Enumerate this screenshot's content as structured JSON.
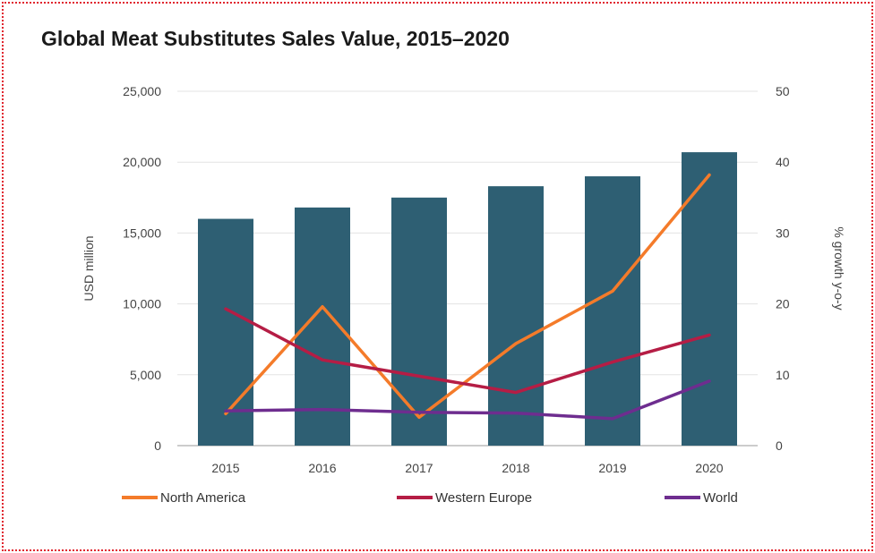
{
  "chart_data": {
    "type": "bar",
    "title": "Global Meat Substitutes Sales Value, 2015–2020",
    "categories": [
      "2015",
      "2016",
      "2017",
      "2018",
      "2019",
      "2020"
    ],
    "ylabel": "USD million",
    "y2label": "% growth y-o-y",
    "ylim": [
      0,
      25000
    ],
    "y2lim": [
      0,
      50
    ],
    "yticks": [
      "0",
      "5,000",
      "10,000",
      "15,000",
      "20,000",
      "25,000"
    ],
    "y2ticks": [
      "0",
      "10",
      "20",
      "30",
      "40",
      "50"
    ],
    "grid": true,
    "legend_position": "bottom",
    "bars": {
      "values": [
        16000,
        16800,
        17500,
        18300,
        19000,
        20700
      ],
      "color": "#2e5f73"
    },
    "series": [
      {
        "name": "North America",
        "axis": "right",
        "color": "#f47b2a",
        "values": [
          4.5,
          19.6,
          4.0,
          14.4,
          21.8,
          38.2
        ]
      },
      {
        "name": "Western Europe",
        "axis": "right",
        "color": "#b51d45",
        "values": [
          19.3,
          12.1,
          9.8,
          7.5,
          11.8,
          15.6
        ]
      },
      {
        "name": "World",
        "axis": "right",
        "color": "#6e2d8f",
        "values": [
          4.9,
          5.1,
          4.7,
          4.6,
          3.8,
          9.1
        ]
      }
    ]
  }
}
